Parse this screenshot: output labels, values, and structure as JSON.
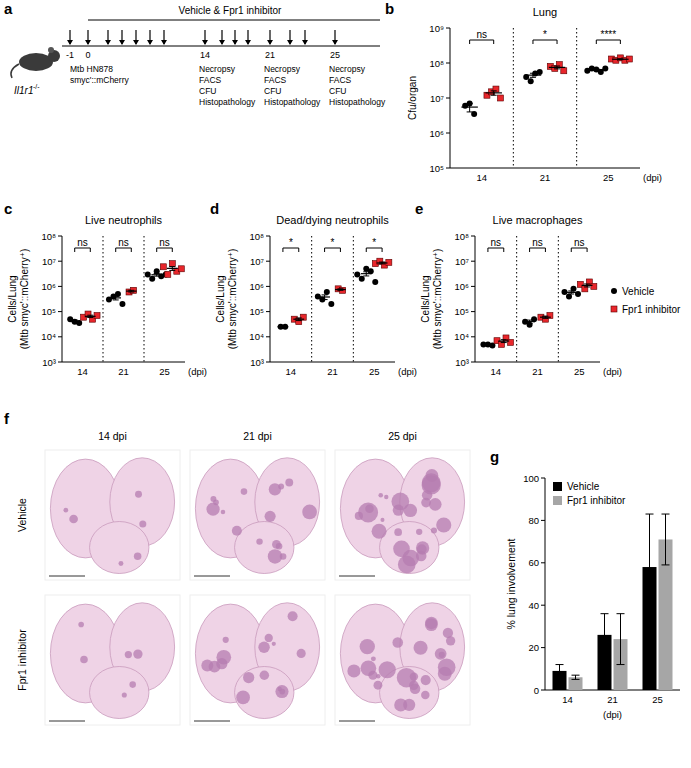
{
  "panel_labels": [
    "a",
    "b",
    "c",
    "d",
    "e",
    "f",
    "g"
  ],
  "panel_a": {
    "treatment": "Vehicle & Fpr1 inhibitor",
    "mouse": "Il1r1",
    "genotype": "-/-",
    "days": [
      "-1",
      "0",
      "14",
      "21",
      "25"
    ],
    "infection": [
      "Mtb HN878",
      "smyc'::mCherry"
    ],
    "readouts": [
      "Necropsy",
      "FACS",
      "CFU",
      "Histopathology"
    ]
  },
  "panel_f": {
    "columns": [
      "14 dpi",
      "21 dpi",
      "25 dpi"
    ],
    "rows": [
      "Vehicle",
      "Fpr1 inhibitor"
    ]
  },
  "chart_data": [
    {
      "type": "scatter",
      "title": "Lung",
      "y_label": "Cfu/organ",
      "x_label": "(dpi)",
      "log": "y",
      "categories": [
        "14",
        "21",
        "25"
      ],
      "annotations": [
        "ns",
        "*",
        "****"
      ],
      "ylim": [
        100000.0,
        1000000000.0
      ],
      "yticks": [
        {
          "value": 100000.0,
          "label": "10⁵"
        },
        {
          "value": 1000000.0,
          "label": "10⁶"
        },
        {
          "value": 10000000.0,
          "label": "10⁷"
        },
        {
          "value": 100000000.0,
          "label": "10⁸"
        },
        {
          "value": 1000000000.0,
          "label": "10⁹"
        }
      ],
      "series": [
        {
          "name": "Vehicle",
          "color": "#000000",
          "marker": "circle",
          "x": [
            "14",
            "14",
            "14",
            "21",
            "21",
            "21",
            "21",
            "25",
            "25",
            "25",
            "25",
            "25"
          ],
          "values": [
            6000000.0,
            7000000.0,
            3500000.0,
            40000000.0,
            30000000.0,
            50000000.0,
            55000000.0,
            60000000.0,
            70000000.0,
            65000000.0,
            55000000.0,
            70000000.0
          ],
          "means": [
            5500000.0,
            45000000.0,
            65000000.0
          ],
          "errors": [
            1500000.0,
            6000000.0,
            3000000.0
          ]
        },
        {
          "name": "Fpr1 inhibitor",
          "color": "#e8262b",
          "marker": "square",
          "x": [
            "14",
            "14",
            "14",
            "14",
            "21",
            "21",
            "21",
            "21",
            "25",
            "25",
            "25",
            "25",
            "25"
          ],
          "values": [
            12000000.0,
            15000000.0,
            18000000.0,
            10000000.0,
            80000000.0,
            70000000.0,
            90000000.0,
            60000000.0,
            130000000.0,
            120000000.0,
            140000000.0,
            120000000.0,
            130000000.0
          ],
          "means": [
            14000000.0,
            75000000.0,
            128000000.0
          ],
          "errors": [
            2000000.0,
            7000000.0,
            4000000.0
          ]
        }
      ]
    },
    {
      "type": "scatter",
      "title": "Live neutrophils",
      "y_label": "Cells/Lung\n(Mtb smyc'::mCherry⁺)",
      "x_label": "(dpi)",
      "log": "y",
      "categories": [
        "14",
        "21",
        "25"
      ],
      "annotations": [
        "ns",
        "ns",
        "ns"
      ],
      "ylim": [
        1000.0,
        100000000.0
      ],
      "yticks": [
        {
          "value": 1000.0,
          "label": "10³"
        },
        {
          "value": 10000.0,
          "label": "10⁴"
        },
        {
          "value": 100000.0,
          "label": "10⁵"
        },
        {
          "value": 1000000.0,
          "label": "10⁶"
        },
        {
          "value": 10000000.0,
          "label": "10⁷"
        },
        {
          "value": 100000000.0,
          "label": "10⁸"
        }
      ],
      "series": [
        {
          "name": "Vehicle",
          "color": "#000000",
          "marker": "circle",
          "x": [
            "14",
            "14",
            "14",
            "21",
            "21",
            "21",
            "21",
            "25",
            "25",
            "25",
            "25",
            "25"
          ],
          "values": [
            50000.0,
            40000.0,
            35000.0,
            300000.0,
            400000.0,
            500000.0,
            200000.0,
            3000000.0,
            2000000.0,
            4000000.0,
            2500000.0,
            3000000.0
          ],
          "means": [
            42000.0,
            350000.0,
            2900000.0
          ],
          "errors": [
            4000.0,
            60000.0,
            350000.0
          ]
        },
        {
          "name": "Fpr1 inhibitor",
          "color": "#e8262b",
          "marker": "square",
          "x": [
            "14",
            "14",
            "14",
            "14",
            "21",
            "21",
            "25",
            "25",
            "25",
            "25",
            "25"
          ],
          "values": [
            60000.0,
            80000.0,
            50000.0,
            70000.0,
            600000.0,
            700000.0,
            6000000.0,
            3000000.0,
            8000000.0,
            4000000.0,
            5000000.0
          ],
          "means": [
            65000.0,
            650000.0,
            5200000.0
          ],
          "errors": [
            7000.0,
            50000.0,
            900000.0
          ]
        }
      ]
    },
    {
      "type": "scatter",
      "title": "Dead/dying neutrophils",
      "y_label": "Cells/Lung\n(Mtb smyc'::mCherry⁺)",
      "x_label": "(dpi)",
      "log": "y",
      "categories": [
        "14",
        "21",
        "25"
      ],
      "annotations": [
        "*",
        "*",
        "*"
      ],
      "ylim": [
        1000.0,
        100000000.0
      ],
      "yticks": [
        {
          "value": 1000.0,
          "label": "10³"
        },
        {
          "value": 10000.0,
          "label": "10⁴"
        },
        {
          "value": 100000.0,
          "label": "10⁵"
        },
        {
          "value": 1000000.0,
          "label": "10⁶"
        },
        {
          "value": 10000000.0,
          "label": "10⁷"
        },
        {
          "value": 100000000.0,
          "label": "10⁸"
        }
      ],
      "series": [
        {
          "name": "Vehicle",
          "color": "#000000",
          "marker": "circle",
          "x": [
            "14",
            "14",
            "21",
            "21",
            "21",
            "21",
            "25",
            "25",
            "25",
            "25",
            "25"
          ],
          "values": [
            25000.0,
            25000.0,
            400000.0,
            300000.0,
            600000.0,
            200000.0,
            3000000.0,
            2000000.0,
            5000000.0,
            4000000.0,
            1500000.0
          ],
          "means": [
            25000.0,
            380000.0,
            3200000.0
          ],
          "errors": [
            1000.0,
            80000.0,
            600000.0
          ]
        },
        {
          "name": "Fpr1 inhibitor",
          "color": "#e8262b",
          "marker": "square",
          "x": [
            "14",
            "14",
            "14",
            "21",
            "21",
            "25",
            "25",
            "25",
            "25"
          ],
          "values": [
            50000.0,
            40000.0,
            60000.0,
            800000.0,
            700000.0,
            8000000.0,
            10000000.0,
            7000000.0,
            9000000.0
          ],
          "means": [
            50000.0,
            750000.0,
            8500000.0
          ],
          "errors": [
            6000.0,
            50000.0,
            700000.0
          ]
        }
      ]
    },
    {
      "type": "scatter",
      "title": "Live macrophages",
      "y_label": "Cells/Lung\n(Mtb smyc'::mCherry⁺)",
      "x_label": "(dpi)",
      "log": "y",
      "legend": "right",
      "categories": [
        "14",
        "21",
        "25"
      ],
      "annotations": [
        "ns",
        "ns",
        "ns"
      ],
      "ylim": [
        1000.0,
        100000000.0
      ],
      "yticks": [
        {
          "value": 1000.0,
          "label": "10³"
        },
        {
          "value": 10000.0,
          "label": "10⁴"
        },
        {
          "value": 100000.0,
          "label": "10⁵"
        },
        {
          "value": 1000000.0,
          "label": "10⁶"
        },
        {
          "value": 10000000.0,
          "label": "10⁷"
        },
        {
          "value": 100000000.0,
          "label": "10⁸"
        }
      ],
      "series": [
        {
          "name": "Vehicle",
          "color": "#000000",
          "marker": "circle",
          "x": [
            "14",
            "14",
            "14",
            "21",
            "21",
            "21",
            "25",
            "25",
            "25",
            "25"
          ],
          "values": [
            5000.0,
            5000.0,
            4500.0,
            40000.0,
            30000.0,
            50000.0,
            600000.0,
            400000.0,
            800000.0,
            500000.0
          ],
          "means": [
            4800.0,
            40000.0,
            580000.0
          ],
          "errors": [
            200,
            6000.0,
            80000.0
          ]
        },
        {
          "name": "Fpr1 inhibitor",
          "color": "#e8262b",
          "marker": "square",
          "x": [
            "14",
            "14",
            "14",
            "14",
            "21",
            "21",
            "21",
            "25",
            "25",
            "25",
            "25"
          ],
          "values": [
            7000.0,
            5000.0,
            9000.0,
            6000.0,
            60000.0,
            50000.0,
            70000.0,
            1200000.0,
            800000.0,
            1500000.0,
            1000000.0
          ],
          "means": [
            6800.0,
            60000.0,
            1100000.0
          ],
          "errors": [
            900,
            6000.0,
            150000.0
          ]
        }
      ]
    },
    {
      "type": "bar",
      "y_label": "% lung involvement",
      "x_label": "(dpi)",
      "legend": "top-left",
      "categories": [
        "14",
        "21",
        "25"
      ],
      "ylim": [
        0,
        100
      ],
      "yticks": [
        0,
        20,
        40,
        60,
        80,
        100
      ],
      "series": [
        {
          "name": "Vehicle",
          "color": "#000000",
          "values": [
            9,
            26,
            58
          ],
          "errors": [
            3,
            10,
            25
          ]
        },
        {
          "name": "Fpr1 inhibitor",
          "color": "#a6a6a6",
          "values": [
            6,
            24,
            71
          ],
          "errors": [
            1,
            12,
            12
          ]
        }
      ]
    }
  ]
}
